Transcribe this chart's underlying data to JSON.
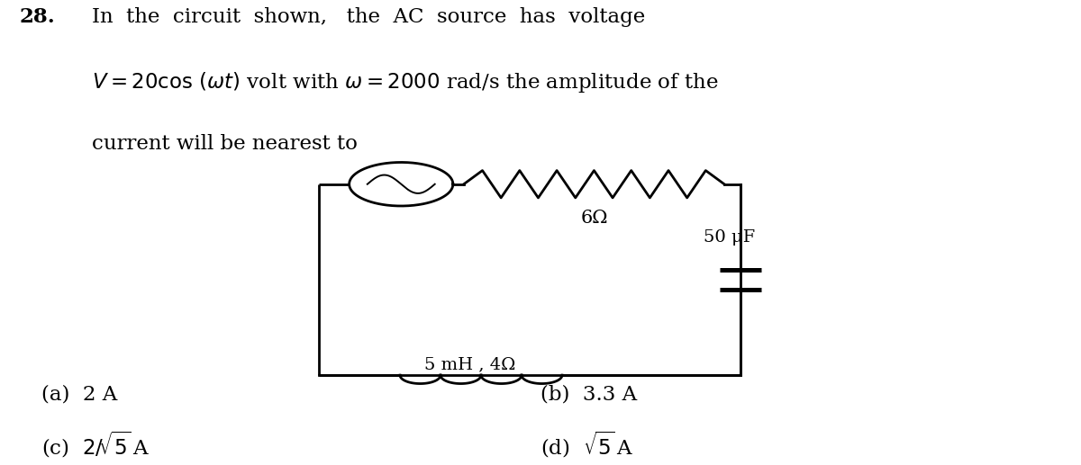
{
  "bg_color": "#ffffff",
  "text_color": "#000000",
  "resistor_label": "6Ω",
  "inductor_label": "5 mH , 4Ω",
  "capacitor_label": "50 μF",
  "cl": 0.295,
  "cr": 0.685,
  "ct": 0.595,
  "cb": 0.175,
  "src_r": 0.048,
  "lw": 2.0
}
